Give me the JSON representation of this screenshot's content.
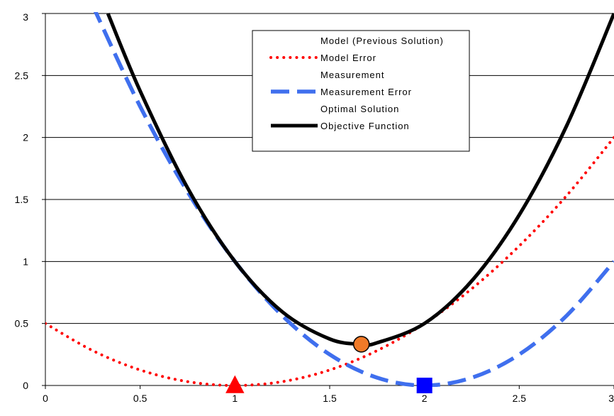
{
  "chart_data": {
    "type": "line",
    "xlim": [
      0,
      3
    ],
    "ylim": [
      0,
      3
    ],
    "x_ticks": [
      "0",
      "0.5",
      "1",
      "1.5",
      "2",
      "2.5",
      "3"
    ],
    "y_ticks": [
      "0",
      "0.5",
      "1",
      "1.5",
      "2",
      "2.5",
      "3"
    ],
    "grid": "horizontal",
    "legend_position": "top-center",
    "series": [
      {
        "name": "Model (Previous Solution)",
        "kind": "marker",
        "marker": "triangle",
        "color": "#ff0000",
        "points": [
          [
            1,
            0
          ]
        ]
      },
      {
        "name": "Model Error",
        "kind": "line",
        "style": "dotted",
        "color": "#ff0000",
        "x": [
          0,
          0.25,
          0.5,
          0.75,
          1,
          1.25,
          1.5,
          1.75,
          2,
          2.25,
          2.5,
          2.75,
          3
        ],
        "y": [
          0.5,
          0.281,
          0.125,
          0.031,
          0,
          0.031,
          0.125,
          0.281,
          0.5,
          0.781,
          1.125,
          1.531,
          2
        ]
      },
      {
        "name": "Measurement",
        "kind": "marker",
        "marker": "square",
        "color": "#0000ff",
        "points": [
          [
            2,
            0
          ]
        ]
      },
      {
        "name": "Measurement Error",
        "kind": "line",
        "style": "dashed",
        "color": "#3f6fee",
        "x": [
          0.25,
          0.5,
          0.75,
          1,
          1.25,
          1.5,
          1.75,
          2,
          2.25,
          2.5,
          2.75,
          3
        ],
        "y": [
          3.063,
          2.25,
          1.563,
          1,
          0.563,
          0.25,
          0.063,
          0,
          0.063,
          0.25,
          0.563,
          1
        ]
      },
      {
        "name": "Optimal Solution",
        "kind": "marker",
        "marker": "circle",
        "color": "#f07a28",
        "points": [
          [
            1.667,
            0.333
          ]
        ]
      },
      {
        "name": "Objective Function",
        "kind": "line",
        "style": "solid",
        "color": "#000000",
        "x": [
          0.33,
          0.5,
          0.75,
          1,
          1.25,
          1.5,
          1.667,
          1.75,
          2,
          2.25,
          2.5,
          2.75,
          3
        ],
        "y": [
          3.0,
          2.375,
          1.594,
          1,
          0.594,
          0.375,
          0.333,
          0.344,
          0.5,
          0.844,
          1.375,
          2.094,
          3.0
        ]
      }
    ]
  }
}
